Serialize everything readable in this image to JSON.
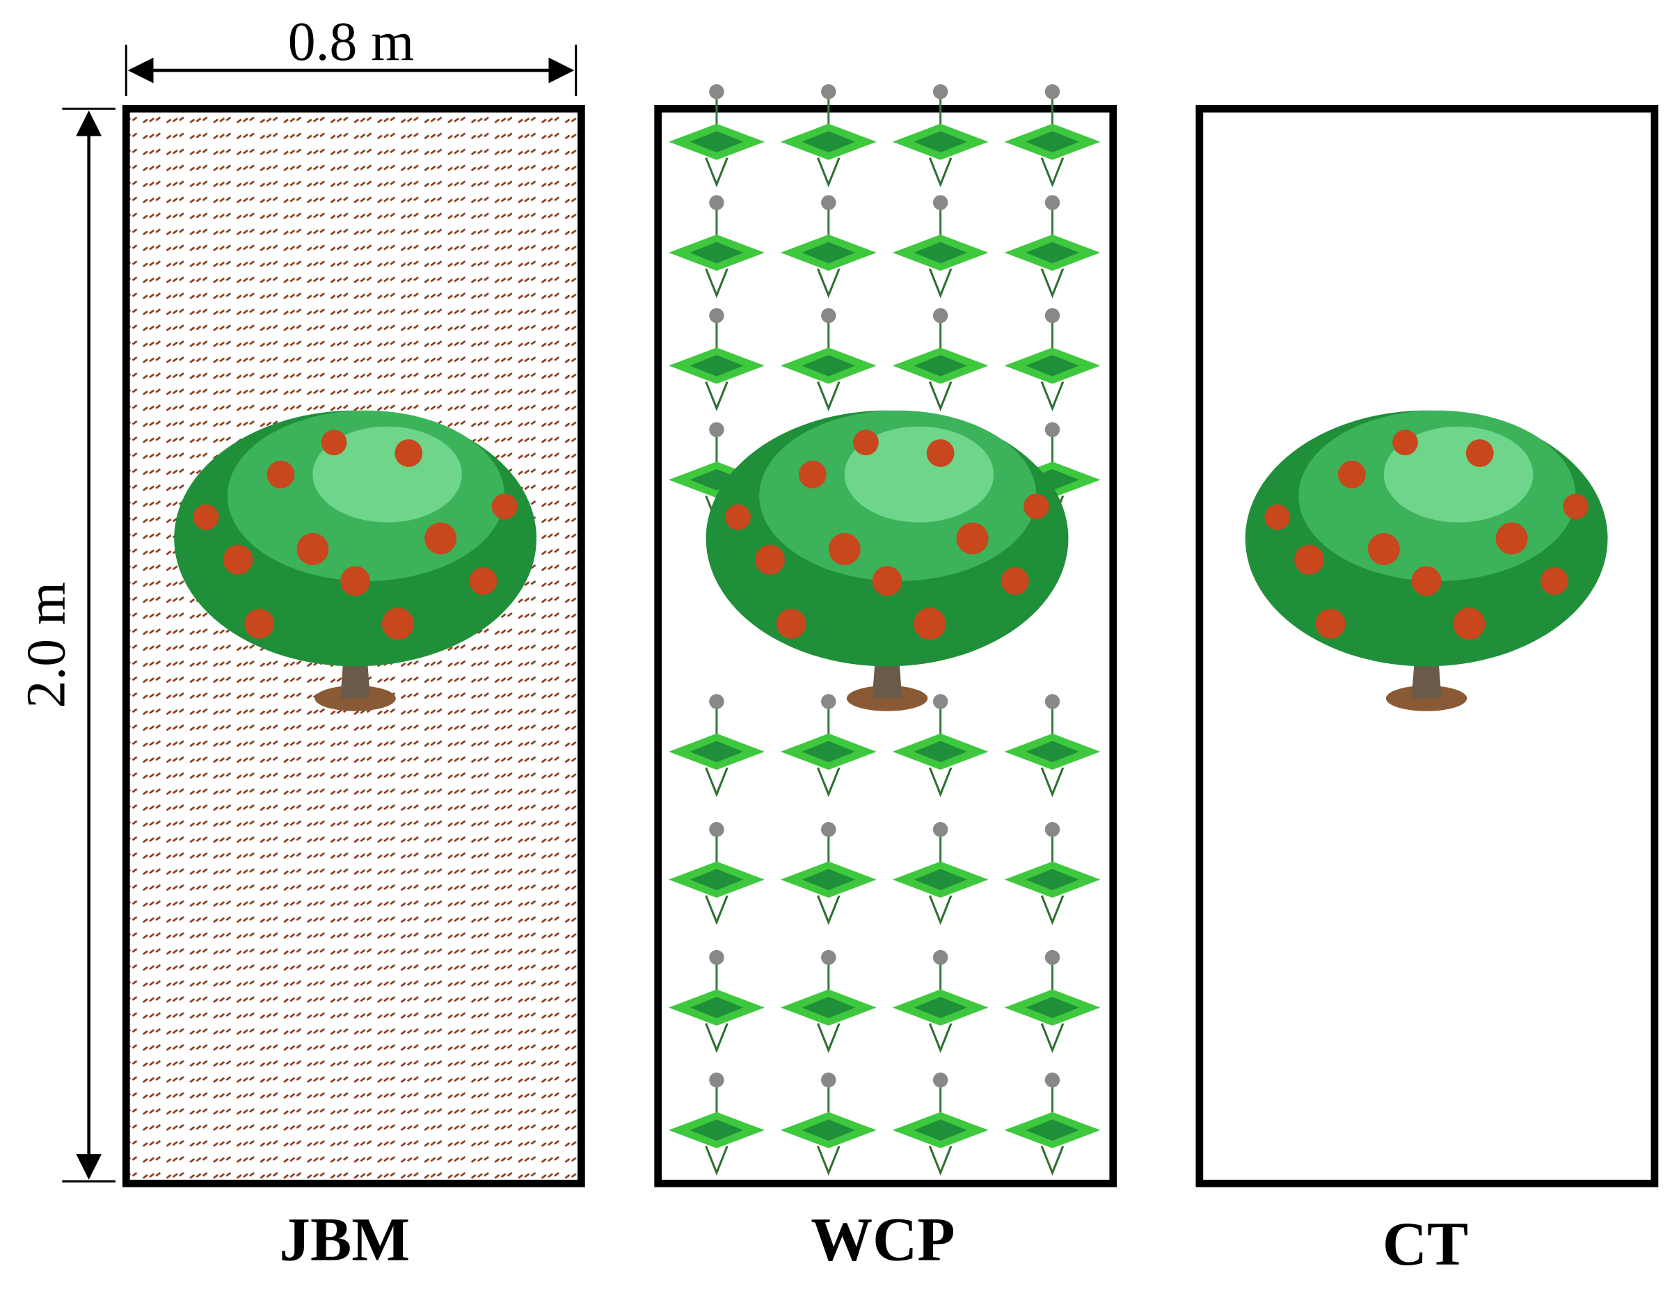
{
  "dimensions": {
    "width": "0.8 m",
    "height": "2.0 m"
  },
  "panels": [
    {
      "label": "JBM"
    },
    {
      "label": "WCP"
    },
    {
      "label": "CT"
    }
  ]
}
